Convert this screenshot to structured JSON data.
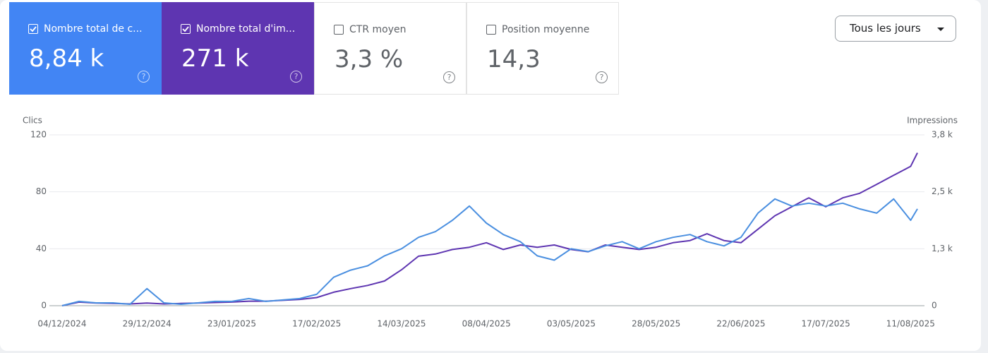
{
  "metrics": [
    {
      "label": "Nombre total de c...",
      "value": "8,84 k",
      "checked": true,
      "color": "#4285f4"
    },
    {
      "label": "Nombre total d'im...",
      "value": "271 k",
      "checked": true,
      "color": "#5e35b1"
    },
    {
      "label": "CTR moyen",
      "value": "3,3 %",
      "checked": false,
      "color": "#ffffff"
    },
    {
      "label": "Position moyenne",
      "value": "14,3",
      "checked": false,
      "color": "#ffffff"
    }
  ],
  "help_icon": "?",
  "dropdown": "Tous les jours",
  "chart_data": {
    "type": "line",
    "x": [
      "04/12/2024",
      "09/12/2024",
      "14/12/2024",
      "19/12/2024",
      "24/12/2024",
      "29/12/2024",
      "03/01/2025",
      "08/01/2025",
      "13/01/2025",
      "18/01/2025",
      "23/01/2025",
      "28/01/2025",
      "02/02/2025",
      "07/02/2025",
      "12/02/2025",
      "17/02/2025",
      "22/02/2025",
      "27/02/2025",
      "04/03/2025",
      "09/03/2025",
      "14/03/2025",
      "19/03/2025",
      "24/03/2025",
      "29/03/2025",
      "03/04/2025",
      "08/04/2025",
      "13/04/2025",
      "18/04/2025",
      "23/04/2025",
      "28/04/2025",
      "03/05/2025",
      "08/05/2025",
      "13/05/2025",
      "18/05/2025",
      "23/05/2025",
      "28/05/2025",
      "02/06/2025",
      "07/06/2025",
      "12/06/2025",
      "17/06/2025",
      "22/06/2025",
      "27/06/2025",
      "02/07/2025",
      "07/07/2025",
      "12/07/2025",
      "17/07/2025",
      "22/07/2025",
      "27/07/2025",
      "01/08/2025",
      "06/08/2025",
      "11/08/2025",
      "13/08/2025"
    ],
    "series": [
      {
        "name": "Clics",
        "color": "#4a8fe0",
        "values": [
          0,
          3,
          2,
          2,
          1,
          12,
          2,
          1,
          2,
          3,
          3,
          5,
          3,
          4,
          5,
          8,
          20,
          25,
          28,
          35,
          40,
          48,
          52,
          60,
          70,
          58,
          50,
          45,
          35,
          32,
          40,
          38,
          42,
          45,
          40,
          45,
          48,
          50,
          45,
          42,
          48,
          65,
          75,
          70,
          72,
          70,
          72,
          68,
          65,
          75,
          60,
          68
        ]
      },
      {
        "name": "Impressions",
        "color": "#5e35b1",
        "axis": "y2",
        "values": [
          0,
          80,
          60,
          50,
          40,
          60,
          40,
          50,
          60,
          70,
          80,
          100,
          100,
          120,
          140,
          180,
          300,
          380,
          450,
          550,
          800,
          1100,
          1150,
          1250,
          1300,
          1400,
          1250,
          1350,
          1300,
          1350,
          1250,
          1200,
          1350,
          1300,
          1250,
          1300,
          1400,
          1450,
          1600,
          1450,
          1400,
          1700,
          2000,
          2200,
          2400,
          2200,
          2400,
          2500,
          2700,
          2900,
          3100,
          3400
        ]
      }
    ],
    "xlim": [
      "04/12/2024",
      "13/08/2025"
    ],
    "xticks": [
      "04/12/2024",
      "29/12/2024",
      "23/01/2025",
      "17/02/2025",
      "14/03/2025",
      "08/04/2025",
      "03/05/2025",
      "28/05/2025",
      "22/06/2025",
      "17/07/2025",
      "11/08/2025"
    ],
    "ylim": [
      0,
      120
    ],
    "yticks": [
      0,
      40,
      80,
      120
    ],
    "y2lim": [
      0,
      3800
    ],
    "y2ticks": [
      0,
      {
        "value": 1267,
        "label": "1,3 k"
      },
      {
        "value": 2533,
        "label": "2,5 k"
      },
      {
        "value": 3800,
        "label": "3,8 k"
      }
    ],
    "grid": true
  }
}
